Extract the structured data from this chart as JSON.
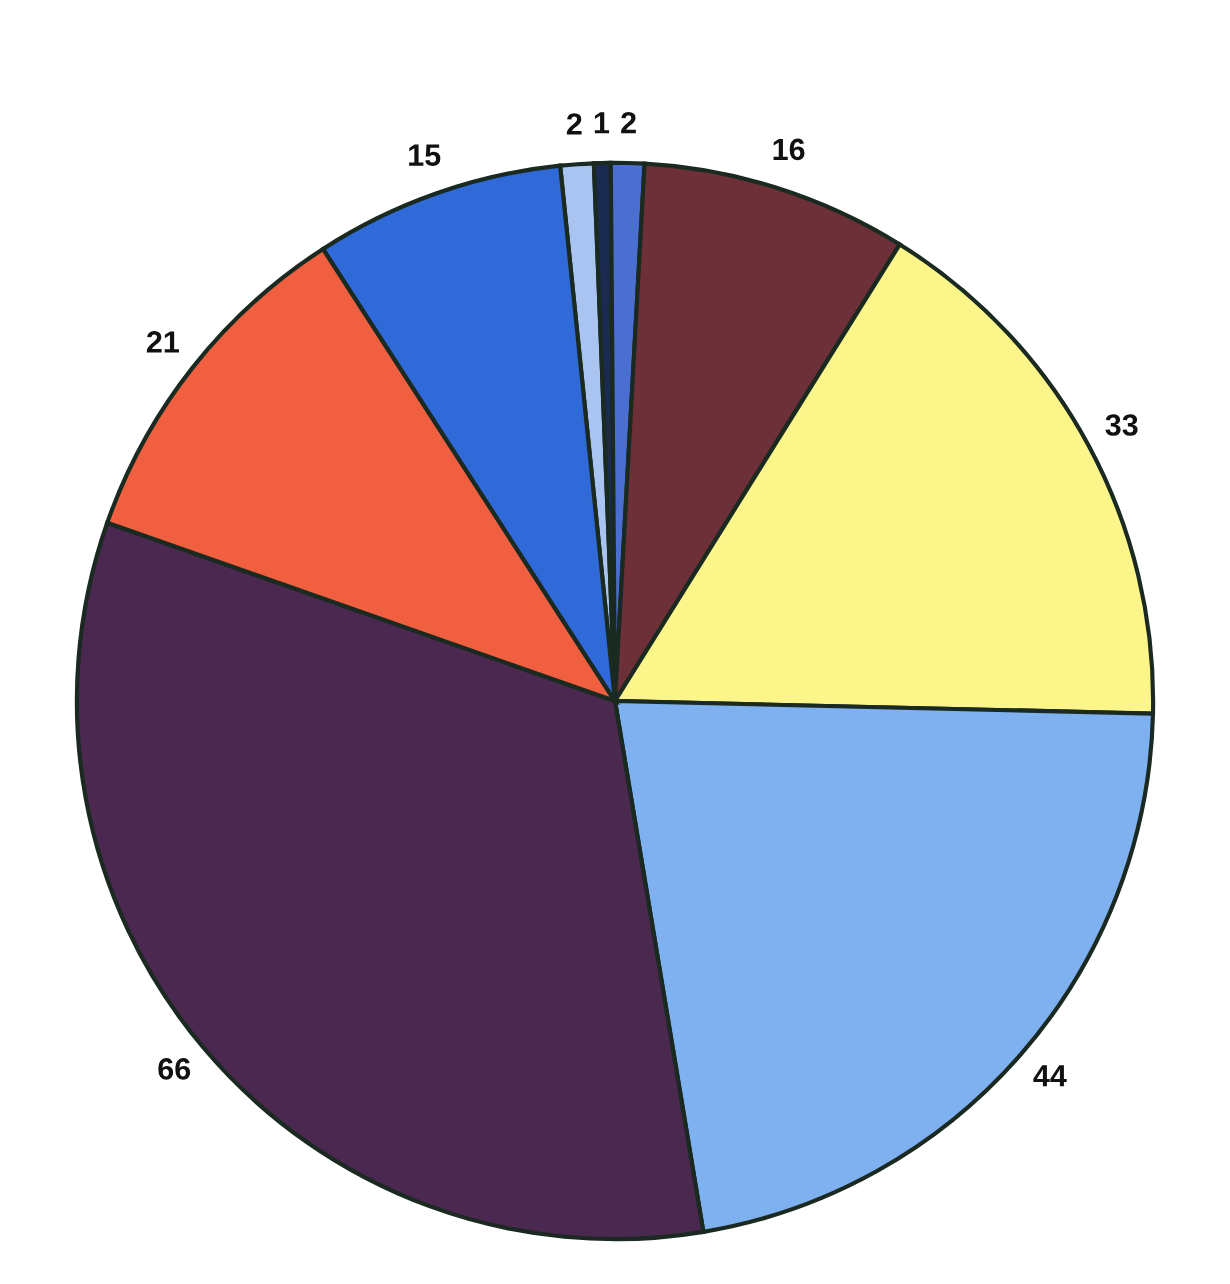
{
  "chart_data": {
    "type": "pie",
    "categories": [
      null,
      null,
      null,
      null,
      null,
      null,
      null,
      null,
      null
    ],
    "values": [
      2,
      1,
      2,
      16,
      33,
      44,
      66,
      21,
      15
    ],
    "colors": [
      "#a9c4f0",
      "#1a2a50",
      "#4a6fd0",
      "#6e3038",
      "#fbf58a",
      "#7fb1f0",
      "#4a2850",
      "#f06040",
      "#2f6ad8"
    ],
    "data_labels": true
  }
}
